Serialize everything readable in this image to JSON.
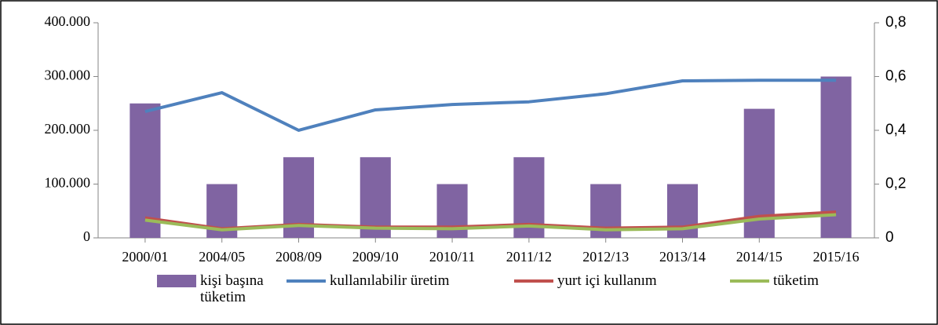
{
  "chart_data": {
    "type": "bar-line",
    "categories": [
      "2000/01",
      "2004/05",
      "2008/09",
      "2009/10",
      "2010/11",
      "2011/12",
      "2012/13",
      "2013/14",
      "2014/15",
      "2015/16"
    ],
    "series": [
      {
        "name": "kişi başına tüketim",
        "type": "bar",
        "axis": "y2",
        "color": "#8064a2",
        "values": [
          0.5,
          0.2,
          0.3,
          0.3,
          0.2,
          0.3,
          0.2,
          0.2,
          0.48,
          0.6
        ]
      },
      {
        "name": "kullanılabilir üretim",
        "type": "line",
        "color": "#4f81bd",
        "values": [
          235000,
          270000,
          200000,
          238000,
          248000,
          253000,
          268000,
          292000,
          293000,
          293000
        ]
      },
      {
        "name": "yurt içi kullanım",
        "type": "line",
        "color": "#c0504d",
        "values": [
          37000,
          17000,
          25000,
          20000,
          20000,
          25000,
          18000,
          20000,
          40000,
          48000
        ]
      },
      {
        "name": "tüketim",
        "type": "line",
        "color": "#9bbb59",
        "values": [
          33000,
          15000,
          23000,
          18000,
          17000,
          22000,
          15000,
          17000,
          35000,
          43000
        ]
      }
    ],
    "ylim": [
      0,
      400000
    ],
    "yticks": [
      0,
      {
        "value": 100000,
        "label": "100.000"
      },
      {
        "value": 200000,
        "label": "200.000"
      },
      {
        "value": 300000,
        "label": "300.000"
      },
      {
        "value": 400000,
        "label": "400.000"
      }
    ],
    "y2lim": [
      0,
      0.8
    ],
    "y2ticks": [
      0,
      {
        "value": 0.2,
        "label": "0,2"
      },
      {
        "value": 0.4,
        "label": "0,4"
      },
      {
        "value": 0.6,
        "label": "0,6"
      },
      {
        "value": 0.8,
        "label": "0,8"
      }
    ],
    "legend": "bottom"
  }
}
